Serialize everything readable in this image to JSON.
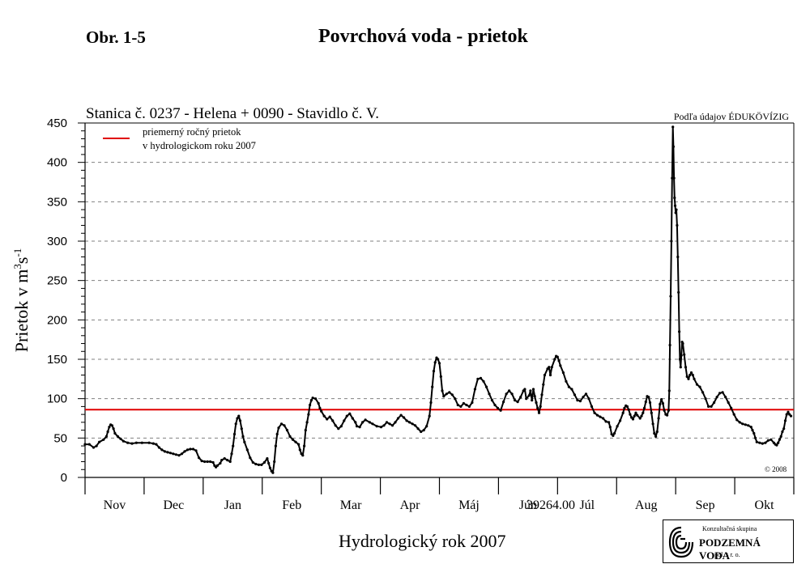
{
  "header": {
    "figure_label": "Obr. 1-5",
    "title": "Povrchová voda - prietok"
  },
  "source_note": "Podľa údajov ÉDUKÖVÍZIG",
  "copyright": "© 2008",
  "logo": {
    "line1": "Konzultačná skupina",
    "line2": "PODZEMNÁ VODA",
    "line3": "spol. s r. o."
  },
  "chart_data": {
    "type": "line",
    "subtitle": "Stanica č. 0237 - Helena + 0090 - Stavidlo č. V.",
    "xlabel": "Hydrologický rok 2007",
    "ylabel_main": "Prietok v m",
    "ylabel_sup1": "3",
    "ylabel_mid": "s",
    "ylabel_sup2": "-1",
    "ylim": [
      0,
      450
    ],
    "yticks": [
      0,
      50,
      100,
      150,
      200,
      250,
      300,
      350,
      400,
      450
    ],
    "months": [
      "Nov",
      "Dec",
      "Jan",
      "Feb",
      "Mar",
      "Apr",
      "Máj",
      "Jún",
      "Júl",
      "Aug",
      "Sep",
      "Okt"
    ],
    "overlay_label": "39264.00",
    "grid": "horizontal dashed",
    "legend": {
      "position": "top-left",
      "line1": "priemerný ročný prietok",
      "line2": "v hydrologickom roku 2007"
    },
    "mean_flow": 86,
    "colors": {
      "flow": "#000000",
      "mean": "#e00000",
      "grid": "#808080"
    },
    "series": [
      {
        "points": [
          [
            0,
            42
          ],
          [
            3,
            42
          ],
          [
            6,
            38
          ],
          [
            8,
            40
          ],
          [
            10,
            45
          ],
          [
            13,
            48
          ],
          [
            15,
            52
          ],
          [
            16,
            58
          ],
          [
            17,
            64
          ],
          [
            18,
            67
          ],
          [
            19,
            66
          ],
          [
            20,
            62
          ],
          [
            21,
            56
          ],
          [
            23,
            52
          ],
          [
            25,
            49
          ],
          [
            27,
            46
          ],
          [
            30,
            44
          ],
          [
            33,
            43
          ],
          [
            36,
            44
          ],
          [
            40,
            44
          ],
          [
            45,
            44
          ],
          [
            48,
            43
          ],
          [
            50,
            42
          ],
          [
            52,
            38
          ],
          [
            54,
            35
          ],
          [
            56,
            33
          ],
          [
            58,
            32
          ],
          [
            60,
            31
          ],
          [
            62,
            30
          ],
          [
            64,
            29
          ],
          [
            66,
            28
          ],
          [
            68,
            30
          ],
          [
            70,
            33
          ],
          [
            72,
            35
          ],
          [
            74,
            36
          ],
          [
            76,
            36
          ],
          [
            78,
            34
          ],
          [
            80,
            25
          ],
          [
            82,
            21
          ],
          [
            84,
            20
          ],
          [
            86,
            20
          ],
          [
            88,
            20
          ],
          [
            90,
            19
          ],
          [
            91,
            15
          ],
          [
            92,
            13
          ],
          [
            93,
            15
          ],
          [
            95,
            18
          ],
          [
            96,
            22
          ],
          [
            98,
            24
          ],
          [
            100,
            22
          ],
          [
            102,
            20
          ],
          [
            103,
            30
          ],
          [
            104,
            40
          ],
          [
            105,
            55
          ],
          [
            106,
            68
          ],
          [
            107,
            75
          ],
          [
            108,
            78
          ],
          [
            109,
            72
          ],
          [
            110,
            62
          ],
          [
            111,
            52
          ],
          [
            112,
            45
          ],
          [
            114,
            35
          ],
          [
            116,
            25
          ],
          [
            118,
            19
          ],
          [
            120,
            17
          ],
          [
            122,
            16
          ],
          [
            124,
            16
          ],
          [
            126,
            19
          ],
          [
            128,
            24
          ],
          [
            129,
            18
          ],
          [
            130,
            12
          ],
          [
            131,
            8
          ],
          [
            132,
            6
          ],
          [
            133,
            20
          ],
          [
            134,
            40
          ],
          [
            135,
            55
          ],
          [
            136,
            63
          ],
          [
            138,
            68
          ],
          [
            140,
            66
          ],
          [
            142,
            60
          ],
          [
            144,
            52
          ],
          [
            146,
            48
          ],
          [
            148,
            45
          ],
          [
            150,
            42
          ],
          [
            151,
            35
          ],
          [
            152,
            30
          ],
          [
            153,
            28
          ],
          [
            154,
            40
          ],
          [
            155,
            60
          ],
          [
            156,
            70
          ],
          [
            157,
            80
          ],
          [
            158,
            92
          ],
          [
            159,
            98
          ],
          [
            160,
            101
          ],
          [
            162,
            100
          ],
          [
            164,
            94
          ],
          [
            165,
            88
          ],
          [
            166,
            84
          ],
          [
            168,
            78
          ],
          [
            170,
            74
          ],
          [
            172,
            77
          ],
          [
            174,
            72
          ],
          [
            176,
            66
          ],
          [
            178,
            62
          ],
          [
            180,
            65
          ],
          [
            182,
            72
          ],
          [
            184,
            78
          ],
          [
            186,
            81
          ],
          [
            188,
            75
          ],
          [
            190,
            70
          ],
          [
            191,
            65
          ],
          [
            193,
            64
          ],
          [
            195,
            70
          ],
          [
            197,
            73
          ],
          [
            200,
            70
          ],
          [
            202,
            68
          ],
          [
            205,
            65
          ],
          [
            208,
            64
          ],
          [
            210,
            66
          ],
          [
            212,
            70
          ],
          [
            214,
            68
          ],
          [
            216,
            66
          ],
          [
            218,
            70
          ],
          [
            220,
            75
          ],
          [
            222,
            79
          ],
          [
            224,
            76
          ],
          [
            226,
            72
          ],
          [
            228,
            70
          ],
          [
            230,
            68
          ],
          [
            232,
            66
          ],
          [
            234,
            62
          ],
          [
            236,
            58
          ],
          [
            238,
            60
          ],
          [
            240,
            65
          ],
          [
            242,
            78
          ],
          [
            243,
            95
          ],
          [
            244,
            115
          ],
          [
            245,
            135
          ],
          [
            246,
            146
          ],
          [
            247,
            152
          ],
          [
            248,
            150
          ],
          [
            249,
            145
          ],
          [
            250,
            128
          ],
          [
            251,
            110
          ],
          [
            252,
            103
          ],
          [
            254,
            106
          ],
          [
            256,
            108
          ],
          [
            258,
            105
          ],
          [
            260,
            100
          ],
          [
            262,
            92
          ],
          [
            264,
            90
          ],
          [
            266,
            94
          ],
          [
            268,
            92
          ],
          [
            270,
            90
          ],
          [
            272,
            95
          ],
          [
            274,
            112
          ],
          [
            276,
            125
          ],
          [
            278,
            126
          ],
          [
            280,
            122
          ],
          [
            282,
            115
          ],
          [
            284,
            106
          ],
          [
            286,
            98
          ],
          [
            288,
            92
          ],
          [
            290,
            88
          ],
          [
            292,
            85
          ],
          [
            294,
            96
          ],
          [
            296,
            106
          ],
          [
            298,
            110
          ],
          [
            300,
            106
          ],
          [
            302,
            98
          ],
          [
            304,
            96
          ],
          [
            306,
            102
          ],
          [
            308,
            110
          ],
          [
            309,
            112
          ],
          [
            310,
            100
          ],
          [
            312,
            104
          ],
          [
            313,
            110
          ],
          [
            314,
            98
          ],
          [
            315,
            112
          ],
          [
            316,
            103
          ],
          [
            317,
            95
          ],
          [
            318,
            88
          ],
          [
            319,
            82
          ],
          [
            320,
            90
          ],
          [
            321,
            105
          ],
          [
            322,
            118
          ],
          [
            323,
            130
          ],
          [
            325,
            138
          ],
          [
            326,
            140
          ],
          [
            327,
            130
          ],
          [
            328,
            140
          ],
          [
            330,
            150
          ],
          [
            331,
            154
          ],
          [
            332,
            153
          ],
          [
            333,
            148
          ],
          [
            334,
            142
          ],
          [
            336,
            133
          ],
          [
            338,
            122
          ],
          [
            340,
            115
          ],
          [
            342,
            112
          ],
          [
            344,
            105
          ],
          [
            346,
            98
          ],
          [
            348,
            97
          ],
          [
            350,
            102
          ],
          [
            352,
            106
          ],
          [
            354,
            100
          ],
          [
            356,
            90
          ],
          [
            358,
            82
          ],
          [
            360,
            79
          ],
          [
            362,
            77
          ],
          [
            364,
            75
          ],
          [
            366,
            71
          ],
          [
            368,
            70
          ],
          [
            369,
            64
          ],
          [
            370,
            55
          ],
          [
            371,
            53
          ],
          [
            372,
            56
          ],
          [
            374,
            65
          ],
          [
            376,
            72
          ],
          [
            378,
            82
          ],
          [
            379,
            88
          ],
          [
            380,
            91
          ],
          [
            381,
            90
          ],
          [
            382,
            86
          ],
          [
            383,
            80
          ],
          [
            384,
            76
          ],
          [
            385,
            74
          ],
          [
            386,
            78
          ],
          [
            387,
            82
          ],
          [
            388,
            79
          ],
          [
            390,
            75
          ],
          [
            391,
            78
          ],
          [
            392,
            82
          ],
          [
            393,
            88
          ],
          [
            394,
            96
          ],
          [
            395,
            103
          ],
          [
            396,
            102
          ],
          [
            397,
            95
          ],
          [
            398,
            82
          ],
          [
            399,
            68
          ],
          [
            400,
            56
          ],
          [
            401,
            52
          ],
          [
            402,
            58
          ],
          [
            403,
            75
          ],
          [
            404,
            93
          ],
          [
            405,
            99
          ],
          [
            406,
            94
          ],
          [
            407,
            85
          ],
          [
            408,
            80
          ],
          [
            409,
            79
          ],
          [
            410,
            85
          ],
          [
            410.5,
            110
          ],
          [
            411,
            168
          ],
          [
            411.5,
            230
          ],
          [
            412,
            300
          ],
          [
            412.5,
            380
          ],
          [
            413,
            445
          ],
          [
            413.4,
            420
          ],
          [
            413.8,
            380
          ],
          [
            414.2,
            355
          ],
          [
            414.6,
            345
          ],
          [
            415,
            336
          ],
          [
            415.5,
            340
          ],
          [
            416,
            320
          ],
          [
            416.5,
            280
          ],
          [
            417,
            235
          ],
          [
            417.5,
            185
          ],
          [
            418,
            150
          ],
          [
            418.5,
            140
          ],
          [
            419,
            155
          ],
          [
            419.5,
            172
          ],
          [
            420,
            170
          ],
          [
            421,
            156
          ],
          [
            422,
            140
          ],
          [
            423,
            128
          ],
          [
            424,
            125
          ],
          [
            425,
            130
          ],
          [
            426,
            133
          ],
          [
            427,
            130
          ],
          [
            428,
            125
          ],
          [
            430,
            118
          ],
          [
            432,
            115
          ],
          [
            434,
            108
          ],
          [
            436,
            100
          ],
          [
            438,
            90
          ],
          [
            440,
            90
          ],
          [
            442,
            95
          ],
          [
            444,
            102
          ],
          [
            446,
            107
          ],
          [
            448,
            108
          ],
          [
            450,
            102
          ],
          [
            452,
            95
          ],
          [
            454,
            88
          ],
          [
            456,
            80
          ],
          [
            458,
            73
          ],
          [
            460,
            70
          ],
          [
            462,
            68
          ],
          [
            464,
            67
          ],
          [
            466,
            66
          ],
          [
            468,
            64
          ],
          [
            469,
            60
          ],
          [
            470,
            56
          ],
          [
            471,
            50
          ],
          [
            472,
            45
          ],
          [
            474,
            44
          ],
          [
            476,
            43
          ],
          [
            478,
            44
          ],
          [
            480,
            47
          ],
          [
            482,
            48
          ],
          [
            484,
            44
          ],
          [
            485,
            42
          ],
          [
            486,
            41
          ],
          [
            487,
            44
          ],
          [
            488,
            48
          ],
          [
            489,
            52
          ],
          [
            490,
            58
          ],
          [
            491,
            62
          ],
          [
            492,
            72
          ],
          [
            493,
            80
          ],
          [
            494,
            83
          ],
          [
            495,
            80
          ],
          [
            496,
            78
          ]
        ]
      }
    ]
  }
}
